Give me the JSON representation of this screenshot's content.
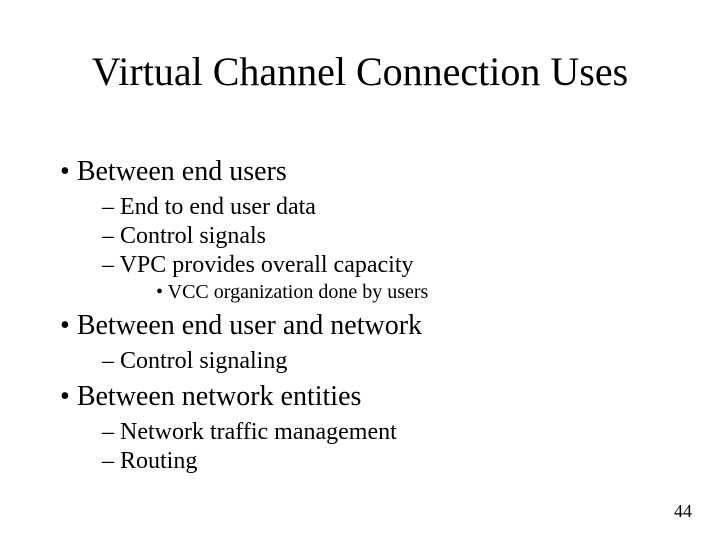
{
  "title": "Virtual Channel Connection Uses",
  "bullets": {
    "b1": "Between end users",
    "b1_1": "End to end user data",
    "b1_2": "Control signals",
    "b1_3": "VPC provides overall capacity",
    "b1_3_1": "VCC organization done by users",
    "b2": "Between end user and network",
    "b2_1": "Control signaling",
    "b3": "Between network entities",
    "b3_1": "Network traffic management",
    "b3_2": "Routing"
  },
  "page_number": "44",
  "style": {
    "slide_width": 720,
    "slide_height": 540,
    "background_color": "#ffffff",
    "text_color": "#000000",
    "font_family": "Times New Roman",
    "title_fontsize": 40,
    "l1_fontsize": 28,
    "l2_fontsize": 24,
    "l3_fontsize": 20,
    "page_number_fontsize": 18
  }
}
